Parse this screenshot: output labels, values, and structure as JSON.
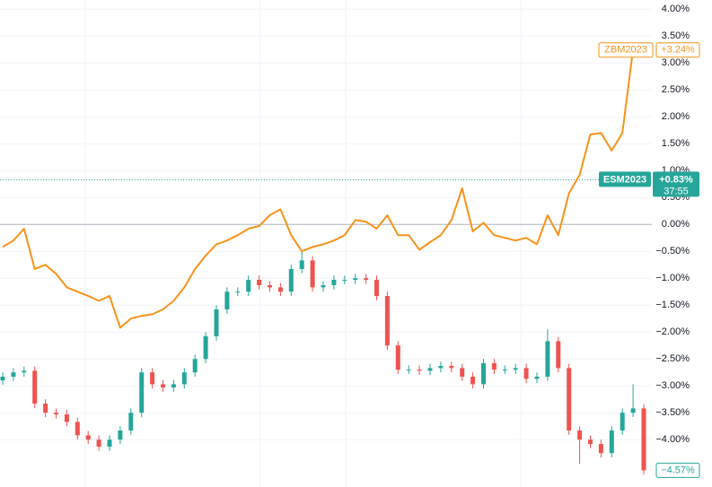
{
  "chart_data": {
    "type": "candlestick_line",
    "ylim": [
      -4.88,
      4.17
    ],
    "yticks": [
      {
        "value": 4,
        "label": "4.00%"
      },
      {
        "value": 3.5,
        "label": "3.50%"
      },
      {
        "value": 3,
        "label": "3.00%"
      },
      {
        "value": 2.5,
        "label": "2.50%"
      },
      {
        "value": 2,
        "label": "2.00%"
      },
      {
        "value": 1.5,
        "label": "1.50%"
      },
      {
        "value": 1,
        "label": "1.00%"
      },
      {
        "value": 0.5,
        "label": "0.50%"
      },
      {
        "value": 0,
        "label": "0.00%"
      },
      {
        "value": -0.5,
        "label": "−0.50%"
      },
      {
        "value": -1,
        "label": "−1.00%"
      },
      {
        "value": -1.5,
        "label": "−1.50%"
      },
      {
        "value": -2,
        "label": "−2.00%"
      },
      {
        "value": -2.5,
        "label": "−2.50%"
      },
      {
        "value": -3,
        "label": "−3.00%"
      },
      {
        "value": -3.5,
        "label": "−3.50%"
      },
      {
        "value": -4,
        "label": "−4.00%"
      }
    ],
    "grid": true,
    "candles": {
      "name": "ESM2023",
      "up_color": "#26a69a",
      "down_color": "#ef5350",
      "open": [
        -2.9,
        -2.83,
        -2.75,
        -2.72,
        -3.33,
        -3.5,
        -3.53,
        -3.67,
        -3.92,
        -4.0,
        -4.13,
        -4.0,
        -3.83,
        -3.5,
        -2.75,
        -2.97,
        -3.03,
        -2.97,
        -2.75,
        -2.5,
        -2.08,
        -1.58,
        -1.25,
        -1.25,
        -1.03,
        -1.13,
        -1.17,
        -1.25,
        -0.83,
        -0.67,
        -1.17,
        -1.13,
        -1.03,
        -1.03,
        -1.0,
        -1.03,
        -1.33,
        -2.25,
        -2.7,
        -2.7,
        -2.72,
        -2.67,
        -2.63,
        -2.67,
        -2.83,
        -2.97,
        -2.58,
        -2.7,
        -2.7,
        -2.67,
        -2.87,
        -2.83,
        -2.17,
        -2.67,
        -3.83,
        -4.0,
        -4.08,
        -4.25,
        -3.83,
        -3.5,
        -3.42
      ],
      "high": [
        -2.75,
        -2.67,
        -2.64,
        -2.64,
        -3.25,
        -3.42,
        -3.45,
        -3.59,
        -3.84,
        -3.92,
        -3.92,
        -3.75,
        -3.42,
        -2.67,
        -2.67,
        -2.89,
        -2.89,
        -2.67,
        -2.42,
        -2.0,
        -1.5,
        -1.17,
        -1.17,
        -0.95,
        -0.95,
        -1.05,
        -1.09,
        -0.75,
        -0.5,
        -0.59,
        -1.05,
        -0.95,
        -0.95,
        -0.92,
        -0.92,
        -0.95,
        -1.25,
        -2.17,
        -2.62,
        -2.62,
        -2.59,
        -2.55,
        -2.55,
        -2.59,
        -2.75,
        -2.5,
        -2.5,
        -2.62,
        -2.59,
        -2.59,
        -2.75,
        -1.95,
        -2.09,
        -2.59,
        -3.75,
        -3.92,
        -4.0,
        -3.75,
        -3.42,
        -2.97,
        -3.34
      ],
      "low": [
        -2.98,
        -2.91,
        -2.83,
        -3.41,
        -3.58,
        -3.61,
        -3.75,
        -4.0,
        -4.08,
        -4.21,
        -4.21,
        -4.08,
        -3.91,
        -3.58,
        -3.05,
        -3.11,
        -3.11,
        -3.05,
        -2.83,
        -2.58,
        -2.16,
        -1.66,
        -1.33,
        -1.33,
        -1.21,
        -1.25,
        -1.33,
        -1.33,
        -0.91,
        -1.25,
        -1.25,
        -1.21,
        -1.11,
        -1.11,
        -1.11,
        -1.41,
        -2.33,
        -2.78,
        -2.78,
        -2.8,
        -2.8,
        -2.75,
        -2.75,
        -2.91,
        -3.05,
        -3.05,
        -2.78,
        -2.78,
        -2.78,
        -2.95,
        -2.95,
        -2.91,
        -2.75,
        -3.91,
        -4.45,
        -4.16,
        -4.33,
        -4.33,
        -3.91,
        -3.58,
        -4.65
      ],
      "close": [
        -2.83,
        -2.75,
        -2.72,
        -3.33,
        -3.5,
        -3.53,
        -3.67,
        -3.92,
        -4.0,
        -4.13,
        -4.0,
        -3.83,
        -3.5,
        -2.75,
        -2.97,
        -3.03,
        -2.97,
        -2.75,
        -2.5,
        -2.08,
        -1.58,
        -1.25,
        -1.25,
        -1.03,
        -1.13,
        -1.17,
        -1.25,
        -0.83,
        -0.67,
        -1.17,
        -1.13,
        -1.03,
        -1.03,
        -1.0,
        -1.03,
        -1.33,
        -2.25,
        -2.7,
        -2.7,
        -2.72,
        -2.67,
        -2.63,
        -2.67,
        -2.83,
        -2.97,
        -2.58,
        -2.7,
        -2.7,
        -2.67,
        -2.87,
        -2.83,
        -2.17,
        -2.67,
        -3.83,
        -4.0,
        -4.08,
        -4.25,
        -3.83,
        -3.5,
        -3.42,
        -4.57
      ],
      "last_label": "−4.57%",
      "marker": {
        "value": 0.83,
        "label": "+0.83%",
        "countdown": "37:55"
      }
    },
    "series": [
      {
        "name": "ZBM2023",
        "color": "#f7931a",
        "values": [
          -0.42,
          -0.3,
          -0.08,
          -0.83,
          -0.75,
          -0.92,
          -1.17,
          -1.25,
          -1.33,
          -1.42,
          -1.33,
          -1.92,
          -1.75,
          -1.7,
          -1.67,
          -1.58,
          -1.42,
          -1.17,
          -0.83,
          -0.58,
          -0.37,
          -0.3,
          -0.2,
          -0.08,
          -0.03,
          0.17,
          0.28,
          -0.2,
          -0.5,
          -0.42,
          -0.37,
          -0.3,
          -0.2,
          0.08,
          0.05,
          -0.08,
          0.17,
          -0.2,
          -0.2,
          -0.47,
          -0.33,
          -0.2,
          0.08,
          0.67,
          -0.13,
          0.03,
          -0.2,
          -0.25,
          -0.3,
          -0.25,
          -0.37,
          0.17,
          -0.2,
          0.58,
          0.92,
          1.67,
          1.7,
          1.37,
          1.7,
          3.25,
          3.24
        ],
        "last_label": "+3.24%"
      }
    ]
  }
}
